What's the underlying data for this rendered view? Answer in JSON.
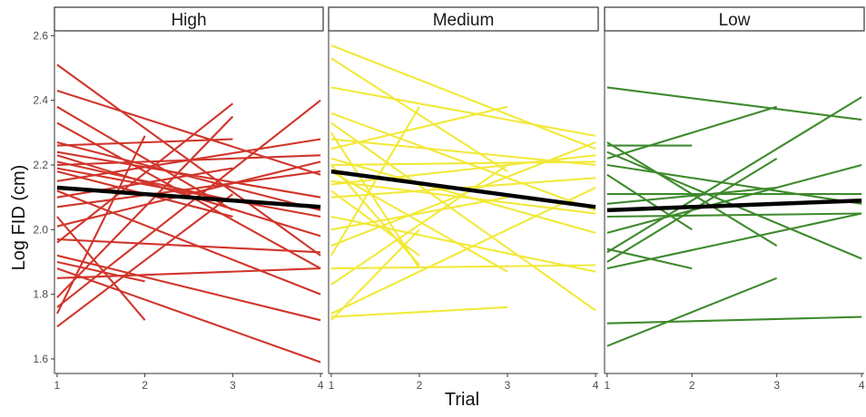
{
  "chart_data": {
    "type": "line",
    "panels_layout": "facets",
    "xlabel": "Trial",
    "ylabel": "Log FID (cm)",
    "x_ticks": [
      1,
      2,
      3,
      4
    ],
    "y_ticks": [
      1.6,
      1.8,
      2.0,
      2.2,
      2.4,
      2.6
    ],
    "y_tick_labels": [
      "1.6",
      "1.8",
      "2.0",
      "2.2",
      "2.4",
      "2.6"
    ],
    "x_tick_labels": [
      "1",
      "2",
      "3",
      "4"
    ],
    "xlim": [
      0.97,
      4.03
    ],
    "ylim": [
      1.555,
      2.615
    ],
    "grid": false,
    "legend": "none",
    "panels": [
      {
        "label": "High",
        "color": "#d0352b",
        "trend": {
          "x": [
            1,
            4
          ],
          "y": [
            2.13,
            2.07
          ]
        },
        "individuals": [
          {
            "x": [
              1,
              4
            ],
            "y": [
              2.51,
              1.92
            ]
          },
          {
            "x": [
              1,
              4
            ],
            "y": [
              2.43,
              2.17
            ]
          },
          {
            "x": [
              1,
              3
            ],
            "y": [
              2.38,
              2.06
            ]
          },
          {
            "x": [
              1,
              4
            ],
            "y": [
              2.33,
              1.88
            ]
          },
          {
            "x": [
              1,
              4
            ],
            "y": [
              2.27,
              2.06
            ]
          },
          {
            "x": [
              1,
              3
            ],
            "y": [
              2.26,
              2.28
            ]
          },
          {
            "x": [
              1,
              4
            ],
            "y": [
              2.24,
              2.1
            ]
          },
          {
            "x": [
              1,
              4
            ],
            "y": [
              2.23,
              1.98
            ]
          },
          {
            "x": [
              1,
              3
            ],
            "y": [
              2.21,
              2.09
            ]
          },
          {
            "x": [
              1,
              4
            ],
            "y": [
              2.2,
              2.23
            ]
          },
          {
            "x": [
              1,
              4
            ],
            "y": [
              2.19,
              2.04
            ]
          },
          {
            "x": [
              1,
              3
            ],
            "y": [
              2.18,
              2.04
            ]
          },
          {
            "x": [
              1,
              4
            ],
            "y": [
              2.15,
              2.28
            ]
          },
          {
            "x": [
              1,
              4
            ],
            "y": [
              2.12,
              1.8
            ]
          },
          {
            "x": [
              1,
              3
            ],
            "y": [
              2.1,
              2.19
            ]
          },
          {
            "x": [
              1,
              4
            ],
            "y": [
              2.07,
              2.18
            ]
          },
          {
            "x": [
              1,
              2
            ],
            "y": [
              2.04,
              1.72
            ]
          },
          {
            "x": [
              1,
              4
            ],
            "y": [
              2.01,
              2.21
            ]
          },
          {
            "x": [
              1,
              3
            ],
            "y": [
              1.96,
              2.39
            ]
          },
          {
            "x": [
              1,
              4
            ],
            "y": [
              1.92,
              1.72
            ]
          },
          {
            "x": [
              1,
              4
            ],
            "y": [
              1.88,
              1.59
            ]
          },
          {
            "x": [
              1,
              4
            ],
            "y": [
              1.85,
              1.88
            ]
          },
          {
            "x": [
              1,
              3
            ],
            "y": [
              1.79,
              2.35
            ]
          },
          {
            "x": [
              1,
              4
            ],
            "y": [
              1.76,
              2.4
            ]
          },
          {
            "x": [
              1,
              2
            ],
            "y": [
              1.74,
              2.29
            ]
          },
          {
            "x": [
              1,
              3
            ],
            "y": [
              1.7,
              2.11
            ]
          },
          {
            "x": [
              1,
              4
            ],
            "y": [
              1.97,
              1.93
            ]
          },
          {
            "x": [
              1,
              2
            ],
            "y": [
              1.9,
              1.84
            ]
          }
        ]
      },
      {
        "label": "Medium",
        "color": "#f2e93a",
        "trend": {
          "x": [
            1,
            4
          ],
          "y": [
            2.18,
            2.07
          ]
        },
        "individuals": [
          {
            "x": [
              1,
              4
            ],
            "y": [
              2.57,
              2.25
            ]
          },
          {
            "x": [
              1,
              3
            ],
            "y": [
              2.53,
              2.18
            ]
          },
          {
            "x": [
              1,
              4
            ],
            "y": [
              2.44,
              2.29
            ]
          },
          {
            "x": [
              1,
              4
            ],
            "y": [
              2.36,
              2.06
            ]
          },
          {
            "x": [
              1,
              4
            ],
            "y": [
              2.33,
              1.75
            ]
          },
          {
            "x": [
              1,
              2
            ],
            "y": [
              2.3,
              1.88
            ]
          },
          {
            "x": [
              1,
              4
            ],
            "y": [
              2.28,
              2.2
            ]
          },
          {
            "x": [
              1,
              3
            ],
            "y": [
              2.25,
              2.38
            ]
          },
          {
            "x": [
              1,
              4
            ],
            "y": [
              2.22,
              1.99
            ]
          },
          {
            "x": [
              1,
              4
            ],
            "y": [
              2.2,
              2.21
            ]
          },
          {
            "x": [
              1,
              3
            ],
            "y": [
              2.18,
              1.87
            ]
          },
          {
            "x": [
              1,
              4
            ],
            "y": [
              2.15,
              2.05
            ]
          },
          {
            "x": [
              1,
              4
            ],
            "y": [
              2.14,
              2.23
            ]
          },
          {
            "x": [
              1,
              2
            ],
            "y": [
              2.12,
              1.92
            ]
          },
          {
            "x": [
              1,
              4
            ],
            "y": [
              2.1,
              2.16
            ]
          },
          {
            "x": [
              1,
              4
            ],
            "y": [
              2.04,
              1.87
            ]
          },
          {
            "x": [
              1,
              3
            ],
            "y": [
              2.0,
              2.1
            ]
          },
          {
            "x": [
              1,
              4
            ],
            "y": [
              1.95,
              2.27
            ]
          },
          {
            "x": [
              1,
              2
            ],
            "y": [
              1.92,
              2.38
            ]
          },
          {
            "x": [
              1,
              4
            ],
            "y": [
              1.88,
              1.89
            ]
          },
          {
            "x": [
              1,
              3
            ],
            "y": [
              1.83,
              2.2
            ]
          },
          {
            "x": [
              1,
              4
            ],
            "y": [
              1.74,
              2.13
            ]
          },
          {
            "x": [
              1,
              2
            ],
            "y": [
              1.72,
              2.0
            ]
          },
          {
            "x": [
              1,
              3
            ],
            "y": [
              1.73,
              1.76
            ]
          },
          {
            "x": [
              1,
              2
            ],
            "y": [
              2.2,
              1.89
            ]
          }
        ]
      },
      {
        "label": "Low",
        "color": "#3e8a2c",
        "trend": {
          "x": [
            1,
            4
          ],
          "y": [
            2.06,
            2.09
          ]
        },
        "individuals": [
          {
            "x": [
              1,
              4
            ],
            "y": [
              2.44,
              2.34
            ]
          },
          {
            "x": [
              1,
              2
            ],
            "y": [
              2.26,
              2.26
            ]
          },
          {
            "x": [
              1,
              3
            ],
            "y": [
              2.27,
              1.95
            ]
          },
          {
            "x": [
              1,
              4
            ],
            "y": [
              2.24,
              1.91
            ]
          },
          {
            "x": [
              1,
              3
            ],
            "y": [
              2.22,
              2.38
            ]
          },
          {
            "x": [
              1,
              4
            ],
            "y": [
              2.2,
              2.08
            ]
          },
          {
            "x": [
              1,
              2
            ],
            "y": [
              2.17,
              2.0
            ]
          },
          {
            "x": [
              1,
              4
            ],
            "y": [
              2.11,
              2.11
            ]
          },
          {
            "x": [
              1,
              3
            ],
            "y": [
              2.08,
              2.13
            ]
          },
          {
            "x": [
              1,
              4
            ],
            "y": [
              2.04,
              2.05
            ]
          },
          {
            "x": [
              1,
              4
            ],
            "y": [
              1.99,
              2.2
            ]
          },
          {
            "x": [
              1,
              4
            ],
            "y": [
              1.93,
              2.41
            ]
          },
          {
            "x": [
              1,
              2
            ],
            "y": [
              1.94,
              1.88
            ]
          },
          {
            "x": [
              1,
              4
            ],
            "y": [
              1.88,
              2.05
            ]
          },
          {
            "x": [
              1,
              4
            ],
            "y": [
              1.71,
              1.73
            ]
          },
          {
            "x": [
              1,
              3
            ],
            "y": [
              1.64,
              1.85
            ]
          },
          {
            "x": [
              1,
              3
            ],
            "y": [
              1.9,
              2.22
            ]
          }
        ]
      }
    ]
  }
}
